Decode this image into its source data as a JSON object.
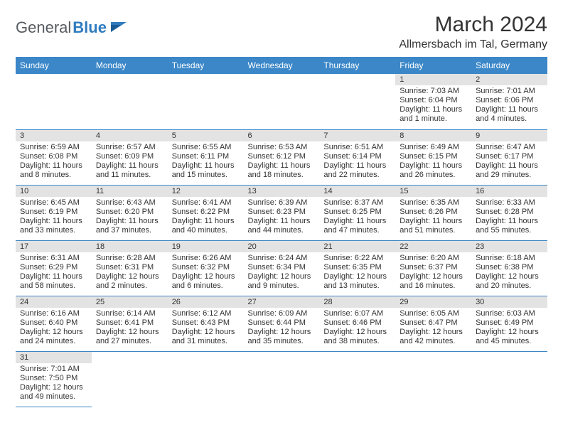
{
  "logo": {
    "text_general": "General",
    "text_blue": "Blue"
  },
  "title": "March 2024",
  "location": "Allmersbach im Tal, Germany",
  "colors": {
    "header_bg": "#3b87c8",
    "header_text": "#ffffff",
    "daynum_bg": "#e3e3e3",
    "border": "#3b87c8",
    "logo_gray": "#555b61",
    "logo_blue": "#2f7bbf"
  },
  "fonts": {
    "title_size_pt": 22,
    "location_size_pt": 12,
    "header_size_pt": 9,
    "body_size_pt": 8
  },
  "weekdays": [
    "Sunday",
    "Monday",
    "Tuesday",
    "Wednesday",
    "Thursday",
    "Friday",
    "Saturday"
  ],
  "weeks": [
    [
      null,
      null,
      null,
      null,
      null,
      {
        "day": "1",
        "sunrise": "Sunrise: 7:03 AM",
        "sunset": "Sunset: 6:04 PM",
        "daylight": "Daylight: 11 hours and 1 minute."
      },
      {
        "day": "2",
        "sunrise": "Sunrise: 7:01 AM",
        "sunset": "Sunset: 6:06 PM",
        "daylight": "Daylight: 11 hours and 4 minutes."
      }
    ],
    [
      {
        "day": "3",
        "sunrise": "Sunrise: 6:59 AM",
        "sunset": "Sunset: 6:08 PM",
        "daylight": "Daylight: 11 hours and 8 minutes."
      },
      {
        "day": "4",
        "sunrise": "Sunrise: 6:57 AM",
        "sunset": "Sunset: 6:09 PM",
        "daylight": "Daylight: 11 hours and 11 minutes."
      },
      {
        "day": "5",
        "sunrise": "Sunrise: 6:55 AM",
        "sunset": "Sunset: 6:11 PM",
        "daylight": "Daylight: 11 hours and 15 minutes."
      },
      {
        "day": "6",
        "sunrise": "Sunrise: 6:53 AM",
        "sunset": "Sunset: 6:12 PM",
        "daylight": "Daylight: 11 hours and 18 minutes."
      },
      {
        "day": "7",
        "sunrise": "Sunrise: 6:51 AM",
        "sunset": "Sunset: 6:14 PM",
        "daylight": "Daylight: 11 hours and 22 minutes."
      },
      {
        "day": "8",
        "sunrise": "Sunrise: 6:49 AM",
        "sunset": "Sunset: 6:15 PM",
        "daylight": "Daylight: 11 hours and 26 minutes."
      },
      {
        "day": "9",
        "sunrise": "Sunrise: 6:47 AM",
        "sunset": "Sunset: 6:17 PM",
        "daylight": "Daylight: 11 hours and 29 minutes."
      }
    ],
    [
      {
        "day": "10",
        "sunrise": "Sunrise: 6:45 AM",
        "sunset": "Sunset: 6:19 PM",
        "daylight": "Daylight: 11 hours and 33 minutes."
      },
      {
        "day": "11",
        "sunrise": "Sunrise: 6:43 AM",
        "sunset": "Sunset: 6:20 PM",
        "daylight": "Daylight: 11 hours and 37 minutes."
      },
      {
        "day": "12",
        "sunrise": "Sunrise: 6:41 AM",
        "sunset": "Sunset: 6:22 PM",
        "daylight": "Daylight: 11 hours and 40 minutes."
      },
      {
        "day": "13",
        "sunrise": "Sunrise: 6:39 AM",
        "sunset": "Sunset: 6:23 PM",
        "daylight": "Daylight: 11 hours and 44 minutes."
      },
      {
        "day": "14",
        "sunrise": "Sunrise: 6:37 AM",
        "sunset": "Sunset: 6:25 PM",
        "daylight": "Daylight: 11 hours and 47 minutes."
      },
      {
        "day": "15",
        "sunrise": "Sunrise: 6:35 AM",
        "sunset": "Sunset: 6:26 PM",
        "daylight": "Daylight: 11 hours and 51 minutes."
      },
      {
        "day": "16",
        "sunrise": "Sunrise: 6:33 AM",
        "sunset": "Sunset: 6:28 PM",
        "daylight": "Daylight: 11 hours and 55 minutes."
      }
    ],
    [
      {
        "day": "17",
        "sunrise": "Sunrise: 6:31 AM",
        "sunset": "Sunset: 6:29 PM",
        "daylight": "Daylight: 11 hours and 58 minutes."
      },
      {
        "day": "18",
        "sunrise": "Sunrise: 6:28 AM",
        "sunset": "Sunset: 6:31 PM",
        "daylight": "Daylight: 12 hours and 2 minutes."
      },
      {
        "day": "19",
        "sunrise": "Sunrise: 6:26 AM",
        "sunset": "Sunset: 6:32 PM",
        "daylight": "Daylight: 12 hours and 6 minutes."
      },
      {
        "day": "20",
        "sunrise": "Sunrise: 6:24 AM",
        "sunset": "Sunset: 6:34 PM",
        "daylight": "Daylight: 12 hours and 9 minutes."
      },
      {
        "day": "21",
        "sunrise": "Sunrise: 6:22 AM",
        "sunset": "Sunset: 6:35 PM",
        "daylight": "Daylight: 12 hours and 13 minutes."
      },
      {
        "day": "22",
        "sunrise": "Sunrise: 6:20 AM",
        "sunset": "Sunset: 6:37 PM",
        "daylight": "Daylight: 12 hours and 16 minutes."
      },
      {
        "day": "23",
        "sunrise": "Sunrise: 6:18 AM",
        "sunset": "Sunset: 6:38 PM",
        "daylight": "Daylight: 12 hours and 20 minutes."
      }
    ],
    [
      {
        "day": "24",
        "sunrise": "Sunrise: 6:16 AM",
        "sunset": "Sunset: 6:40 PM",
        "daylight": "Daylight: 12 hours and 24 minutes."
      },
      {
        "day": "25",
        "sunrise": "Sunrise: 6:14 AM",
        "sunset": "Sunset: 6:41 PM",
        "daylight": "Daylight: 12 hours and 27 minutes."
      },
      {
        "day": "26",
        "sunrise": "Sunrise: 6:12 AM",
        "sunset": "Sunset: 6:43 PM",
        "daylight": "Daylight: 12 hours and 31 minutes."
      },
      {
        "day": "27",
        "sunrise": "Sunrise: 6:09 AM",
        "sunset": "Sunset: 6:44 PM",
        "daylight": "Daylight: 12 hours and 35 minutes."
      },
      {
        "day": "28",
        "sunrise": "Sunrise: 6:07 AM",
        "sunset": "Sunset: 6:46 PM",
        "daylight": "Daylight: 12 hours and 38 minutes."
      },
      {
        "day": "29",
        "sunrise": "Sunrise: 6:05 AM",
        "sunset": "Sunset: 6:47 PM",
        "daylight": "Daylight: 12 hours and 42 minutes."
      },
      {
        "day": "30",
        "sunrise": "Sunrise: 6:03 AM",
        "sunset": "Sunset: 6:49 PM",
        "daylight": "Daylight: 12 hours and 45 minutes."
      }
    ],
    [
      {
        "day": "31",
        "sunrise": "Sunrise: 7:01 AM",
        "sunset": "Sunset: 7:50 PM",
        "daylight": "Daylight: 12 hours and 49 minutes."
      },
      null,
      null,
      null,
      null,
      null,
      null
    ]
  ]
}
